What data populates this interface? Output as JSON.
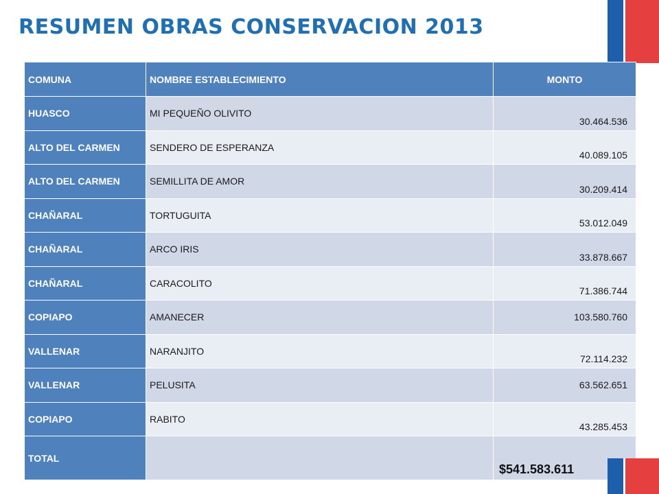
{
  "title": "RESUMEN OBRAS CONSERVACION 2013",
  "colors": {
    "title": "#1f6fb2",
    "header_bg": "#4f81bd",
    "row_odd": "#d0d8e8",
    "row_even": "#e9edf4",
    "logo_blue": "#1d5faa",
    "logo_red": "#e63f40"
  },
  "table": {
    "headers": {
      "comuna": "COMUNA",
      "nombre": "NOMBRE ESTABLECIMIENTO",
      "monto": "MONTO"
    },
    "rows": [
      {
        "comuna": "HUASCO",
        "nombre": "MI PEQUEÑO OLIVITO",
        "monto": "30.464.536"
      },
      {
        "comuna": "ALTO DEL CARMEN",
        "nombre": "SENDERO DE ESPERANZA",
        "monto": "40.089.105"
      },
      {
        "comuna": "ALTO DEL CARMEN",
        "nombre": "SEMILLITA DE AMOR",
        "monto": "30.209.414"
      },
      {
        "comuna": "CHAÑARAL",
        "nombre": "TORTUGUITA",
        "monto": "53.012.049"
      },
      {
        "comuna": "CHAÑARAL",
        "nombre": "ARCO IRIS",
        "monto": "33.878.667"
      },
      {
        "comuna": "CHAÑARAL",
        "nombre": "CARACOLITO",
        "monto": "71.386.744"
      },
      {
        "comuna": "COPIAPO",
        "nombre": "AMANECER",
        "monto": "103.580.760"
      },
      {
        "comuna": "VALLENAR",
        "nombre": "NARANJITO",
        "monto": "72.114.232"
      },
      {
        "comuna": "VALLENAR",
        "nombre": "PELUSITA",
        "monto": "63.562.651"
      },
      {
        "comuna": "COPIAPO",
        "nombre": "RABITO",
        "monto": "43.285.453"
      }
    ],
    "total": {
      "label": "TOTAL",
      "nombre": "",
      "monto": "$541.583.611"
    }
  }
}
